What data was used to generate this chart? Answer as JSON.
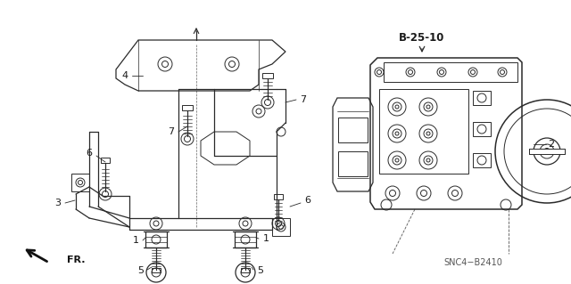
{
  "bg_color": "#ffffff",
  "line_color": "#2a2a2a",
  "label_color": "#1a1a1a",
  "ref_label": "B-25-10",
  "bottom_label": "SNC4−B2410",
  "figsize": [
    6.4,
    3.19
  ],
  "dpi": 100,
  "lw": 0.7,
  "lw_med": 0.9,
  "lw_thick": 1.1
}
